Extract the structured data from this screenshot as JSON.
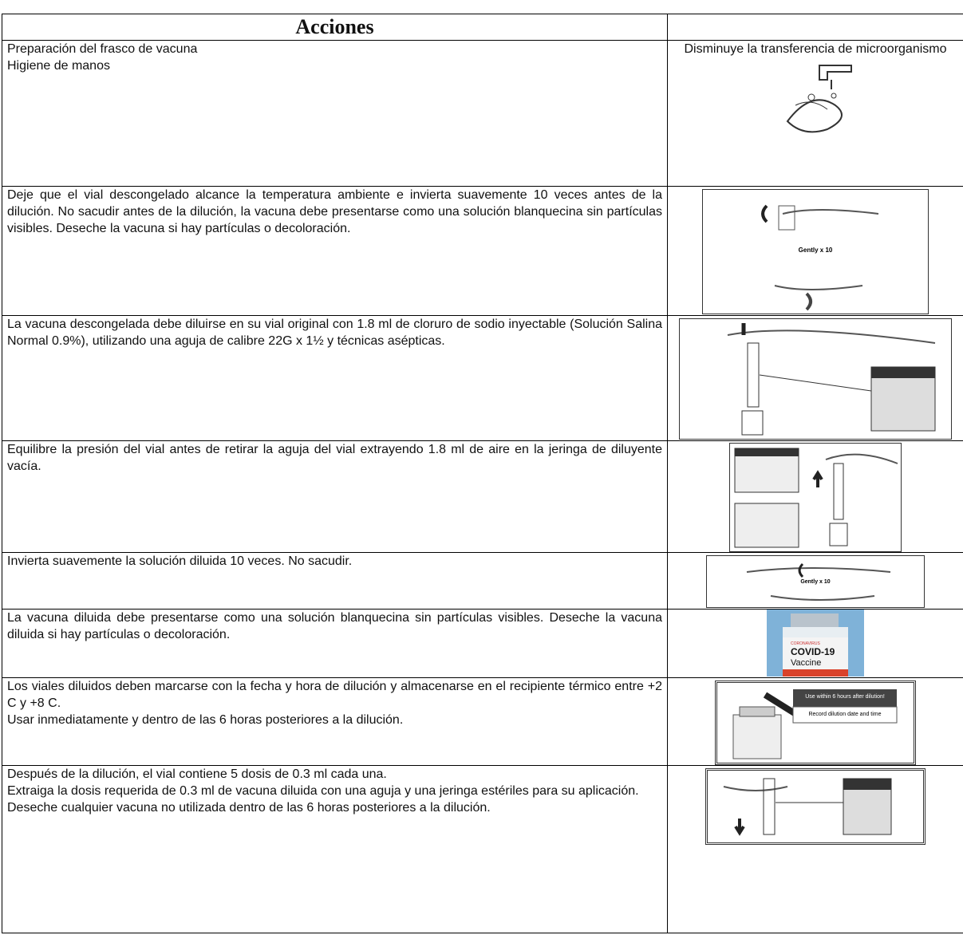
{
  "table": {
    "header": [
      "Acciones"
    ],
    "rows": [
      {
        "action": [
          "Preparación del frasco de vacuna",
          "Higiene de manos"
        ],
        "note": "Disminuye la transferencia de microorganismo"
      },
      {
        "action": [
          "Deje que el vial descongelado alcance la temperatura ambiente e invierta suavemente 10 veces antes de la dilución. No sacudir antes de la dilución, la vacuna debe presentarse como una solución blanquecina sin partículas visibles. Deseche la vacuna si hay partículas o decoloración."
        ],
        "image_text": [
          "Gently x 10"
        ]
      },
      {
        "action": [
          "La vacuna descongelada debe diluirse en su vial original con 1.8 ml de cloruro de sodio inyectable  (Solución Salina Normal 0.9%), utilizando una aguja de calibre 22G x 1½ y técnicas asépticas."
        ]
      },
      {
        "action": [
          "Equilibre la presión del vial antes de retirar la aguja del vial extrayendo 1.8 ml de aire en la jeringa de diluyente vacía."
        ]
      },
      {
        "action": [
          "Invierta suavemente la solución diluida 10 veces. No sacudir."
        ],
        "image_text": [
          "Gently x 10"
        ]
      },
      {
        "action": [
          "La vacuna diluida debe presentarse como una solución blanquecina sin partículas visibles. Deseche la vacuna diluida si hay partículas o decoloración."
        ],
        "image_text": [
          "CORONAVIRUS",
          "COVID-19",
          "Vaccine"
        ]
      },
      {
        "action": [
          "Los viales diluidos deben marcarse con la fecha y hora de dilución y almacenarse en el recipiente térmico entre +2 C y +8 C.",
          "Usar inmediatamente y dentro de las 6 horas posteriores a la dilución."
        ],
        "image_text": [
          "Use within 6 hours after dilution!",
          "Record dilution date and time"
        ]
      },
      {
        "action": [
          "Después de la dilución, el vial contiene 5 dosis de 0.3 ml cada una.",
          "Extraiga la dosis requerida de 0.3 ml de vacuna diluida con una aguja y una jeringa estériles para su aplicación.",
          "Deseche cualquier vacuna no utilizada dentro de las 6 horas posteriores a la dilución."
        ]
      }
    ]
  }
}
